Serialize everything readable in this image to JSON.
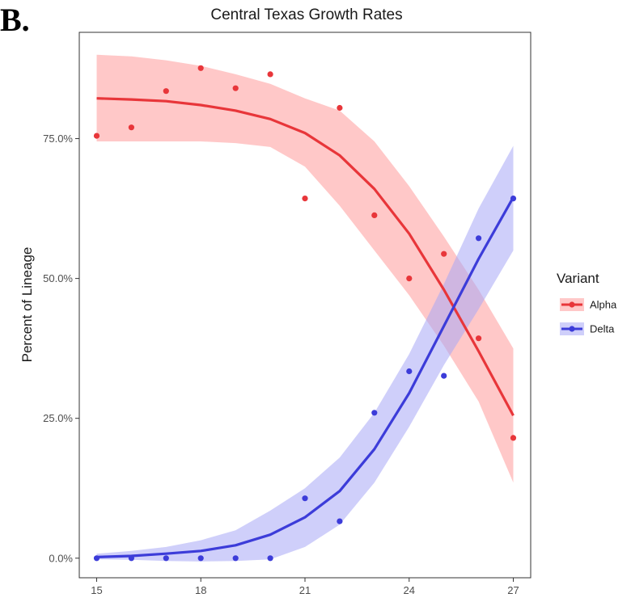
{
  "panel_label": "B.",
  "chart_data": {
    "type": "line",
    "title": "Central Texas Growth Rates",
    "xlabel": "",
    "ylabel": "Percent of Lineage",
    "xlim": [
      14.5,
      27.5
    ],
    "ylim": [
      -0.035,
      0.94
    ],
    "x_ticks": [
      15,
      18,
      21,
      24,
      27
    ],
    "x_tick_labels": [
      "15",
      "18",
      "21",
      "24",
      "27"
    ],
    "y_ticks": [
      0,
      0.25,
      0.5,
      0.75
    ],
    "y_tick_labels": [
      "0.0%",
      "25.0%",
      "50.0%",
      "75.0%"
    ],
    "grid": false,
    "legend": {
      "title": "Variant",
      "position": "right"
    },
    "series": [
      {
        "name": "Alpha",
        "color": "#e8363a",
        "band_color": "#ff9a9a",
        "points_x": [
          15,
          16,
          17,
          18,
          19,
          20,
          21,
          22,
          23,
          24,
          25,
          26,
          27
        ],
        "points_y": [
          0.755,
          0.77,
          0.835,
          0.876,
          0.84,
          0.865,
          0.643,
          0.805,
          0.613,
          0.5,
          0.544,
          0.393,
          0.215
        ],
        "fit_x": [
          15,
          16,
          17,
          18,
          19,
          20,
          21,
          22,
          23,
          24,
          25,
          26,
          27
        ],
        "fit_y": [
          0.822,
          0.82,
          0.817,
          0.81,
          0.8,
          0.785,
          0.76,
          0.72,
          0.66,
          0.58,
          0.48,
          0.37,
          0.255
        ],
        "lower": [
          0.745,
          0.745,
          0.745,
          0.745,
          0.742,
          0.735,
          0.7,
          0.63,
          0.55,
          0.47,
          0.38,
          0.28,
          0.135
        ],
        "upper": [
          0.9,
          0.897,
          0.89,
          0.88,
          0.865,
          0.848,
          0.822,
          0.8,
          0.745,
          0.665,
          0.575,
          0.48,
          0.375
        ]
      },
      {
        "name": "Delta",
        "color": "#3c3cd9",
        "band_color": "#a8a8f5",
        "points_x": [
          15,
          16,
          17,
          18,
          19,
          20,
          21,
          22,
          23,
          24,
          25,
          26,
          27
        ],
        "points_y": [
          0.0,
          0.0,
          0.0,
          0.0,
          0.0,
          0.0,
          0.107,
          0.066,
          0.26,
          0.334,
          0.326,
          0.572,
          0.643
        ],
        "fit_x": [
          15,
          16,
          17,
          18,
          19,
          20,
          21,
          22,
          23,
          24,
          25,
          26,
          27
        ],
        "fit_y": [
          0.002,
          0.004,
          0.008,
          0.013,
          0.023,
          0.042,
          0.073,
          0.12,
          0.195,
          0.295,
          0.415,
          0.535,
          0.645
        ],
        "lower": [
          -0.002,
          -0.003,
          -0.005,
          -0.006,
          -0.005,
          -0.002,
          0.02,
          0.06,
          0.135,
          0.235,
          0.345,
          0.445,
          0.55
        ],
        "upper": [
          0.008,
          0.013,
          0.02,
          0.032,
          0.05,
          0.085,
          0.125,
          0.18,
          0.26,
          0.365,
          0.49,
          0.625,
          0.737
        ]
      }
    ]
  }
}
